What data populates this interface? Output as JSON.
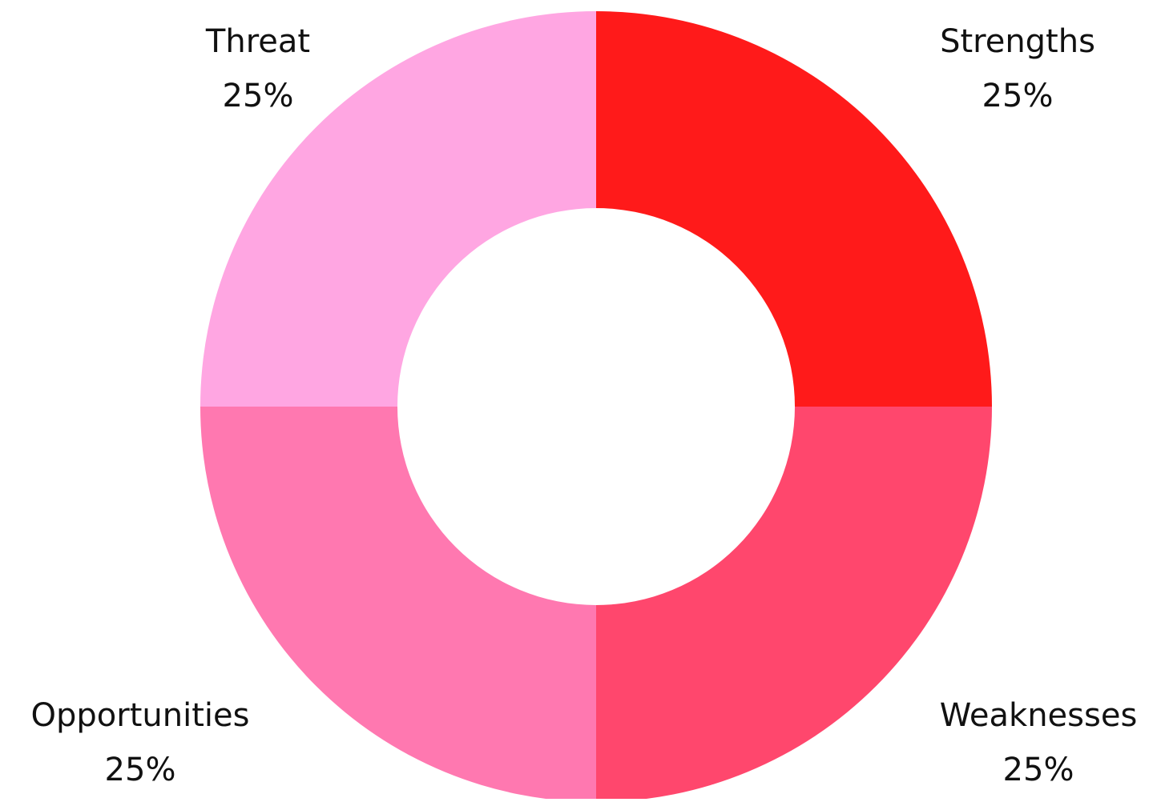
{
  "chart_data": {
    "type": "pie",
    "variant": "donut",
    "title": "",
    "legend": "none",
    "slices": [
      {
        "label": "Strengths",
        "value": 25,
        "value_label": "25%",
        "color": "#ff1a1a"
      },
      {
        "label": "Weaknesses",
        "value": 25,
        "value_label": "25%",
        "color": "#ff476d"
      },
      {
        "label": "Opportunities",
        "value": 25,
        "value_label": "25%",
        "color": "#ff78b0"
      },
      {
        "label": "Threat",
        "value": 25,
        "value_label": "25%",
        "color": "#ffa6e2"
      }
    ]
  }
}
